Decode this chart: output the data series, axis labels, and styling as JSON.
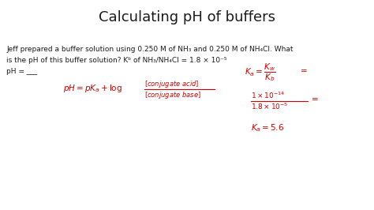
{
  "title": "Calculating pH of buffers",
  "title_fontsize": 13,
  "title_color": "#1a1a1a",
  "bg_color": "#ffffff",
  "body_line1": "Jeff prepared a buffer solution using 0.250 M of NH₃ and 0.250 M of NH₄Cl. What",
  "body_line2": "is the pH of this buffer solution? Kᵇ of NH₃/NH₄Cl = 1.8 × 10⁻⁵",
  "body_line3": "pH = ___",
  "handwriting_color": "#cc0000",
  "text_color": "#1a1a1a",
  "figsize": [
    4.74,
    2.66
  ],
  "dpi": 100,
  "body_fontsize": 6.5,
  "hand_fontsize": 7.5
}
